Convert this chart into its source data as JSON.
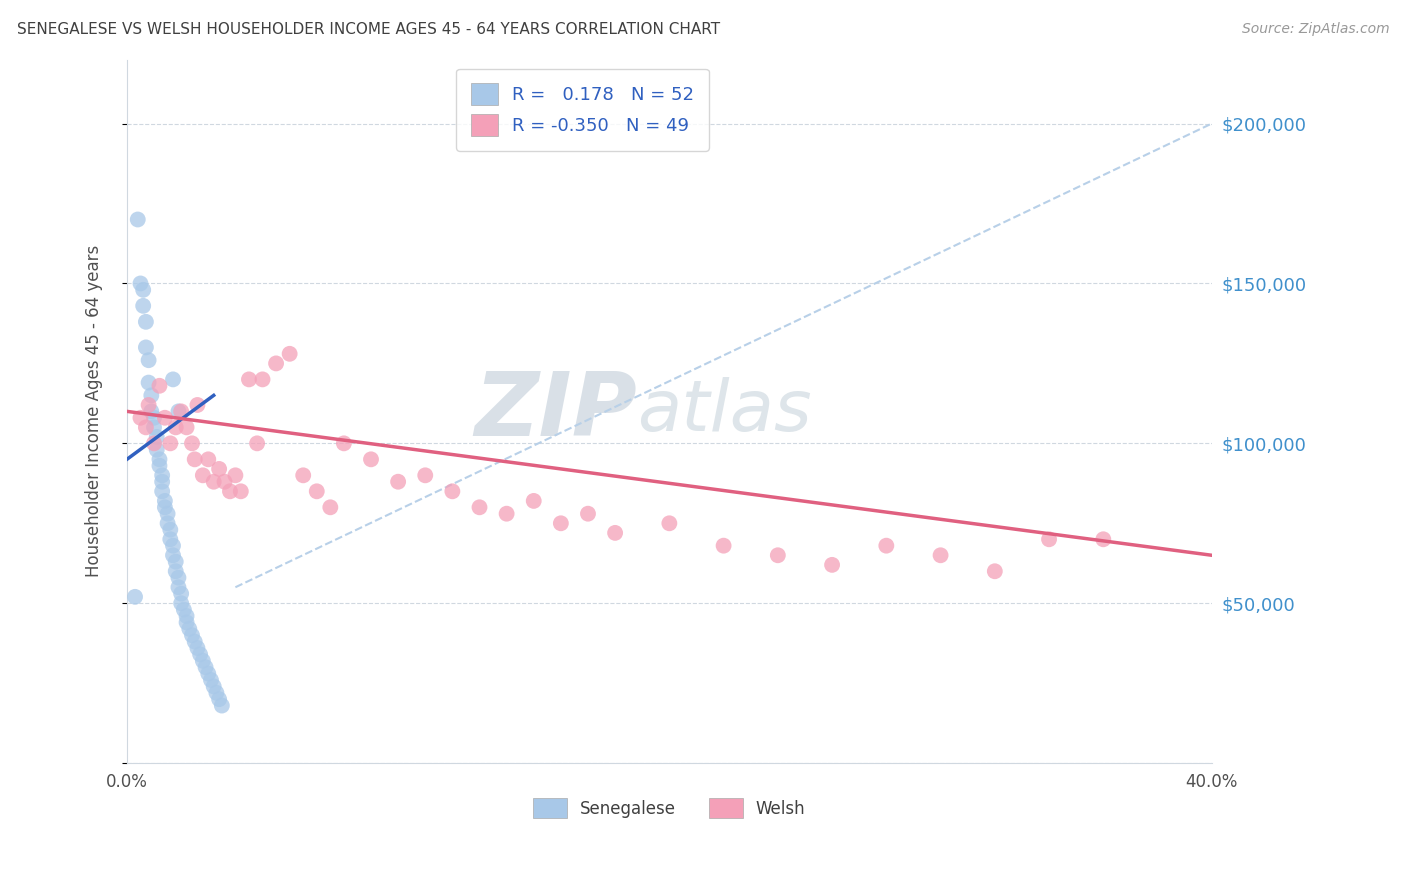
{
  "title": "SENEGALESE VS WELSH HOUSEHOLDER INCOME AGES 45 - 64 YEARS CORRELATION CHART",
  "source": "Source: ZipAtlas.com",
  "ylabel": "Householder Income Ages 45 - 64 years",
  "xlim": [
    0.0,
    0.4
  ],
  "ylim": [
    0,
    220000
  ],
  "yticks": [
    0,
    50000,
    100000,
    150000,
    200000
  ],
  "ytick_labels": [
    "",
    "$50,000",
    "$100,000",
    "$150,000",
    "$200,000"
  ],
  "xticks": [
    0.0,
    0.05,
    0.1,
    0.15,
    0.2,
    0.25,
    0.3,
    0.35,
    0.4
  ],
  "xtick_labels": [
    "0.0%",
    "",
    "",
    "",
    "",
    "",
    "",
    "",
    "40.0%"
  ],
  "senegalese_color": "#a8c8e8",
  "welsh_color": "#f4a0b8",
  "trendline_blue": "#3060c0",
  "trendline_pink": "#e06080",
  "ref_line_color": "#b8d0e8",
  "title_color": "#404040",
  "axis_label_color": "#505050",
  "tick_label_color_right": "#4090cc",
  "watermark_zip_color": "#c8d8e8",
  "watermark_atlas_color": "#c0ccd8",
  "R_senegalese": 0.178,
  "N_senegalese": 52,
  "R_welsh": -0.35,
  "N_welsh": 49,
  "senegalese_x": [
    0.004,
    0.005,
    0.006,
    0.006,
    0.007,
    0.007,
    0.008,
    0.008,
    0.009,
    0.009,
    0.01,
    0.01,
    0.011,
    0.011,
    0.012,
    0.012,
    0.013,
    0.013,
    0.013,
    0.014,
    0.014,
    0.015,
    0.015,
    0.016,
    0.016,
    0.017,
    0.017,
    0.018,
    0.018,
    0.019,
    0.019,
    0.02,
    0.02,
    0.021,
    0.022,
    0.022,
    0.023,
    0.024,
    0.025,
    0.026,
    0.027,
    0.028,
    0.029,
    0.03,
    0.031,
    0.032,
    0.033,
    0.034,
    0.035,
    0.017,
    0.019,
    0.003
  ],
  "senegalese_y": [
    170000,
    150000,
    148000,
    143000,
    138000,
    130000,
    126000,
    119000,
    115000,
    110000,
    108000,
    105000,
    102000,
    98000,
    95000,
    93000,
    90000,
    88000,
    85000,
    82000,
    80000,
    78000,
    75000,
    73000,
    70000,
    68000,
    65000,
    63000,
    60000,
    58000,
    55000,
    53000,
    50000,
    48000,
    46000,
    44000,
    42000,
    40000,
    38000,
    36000,
    34000,
    32000,
    30000,
    28000,
    26000,
    24000,
    22000,
    20000,
    18000,
    120000,
    110000,
    52000
  ],
  "welsh_x": [
    0.005,
    0.007,
    0.008,
    0.01,
    0.012,
    0.014,
    0.016,
    0.018,
    0.02,
    0.022,
    0.024,
    0.025,
    0.026,
    0.028,
    0.03,
    0.032,
    0.034,
    0.036,
    0.038,
    0.04,
    0.042,
    0.045,
    0.048,
    0.05,
    0.055,
    0.06,
    0.065,
    0.07,
    0.075,
    0.08,
    0.09,
    0.1,
    0.11,
    0.12,
    0.13,
    0.14,
    0.15,
    0.16,
    0.17,
    0.18,
    0.2,
    0.22,
    0.24,
    0.26,
    0.28,
    0.3,
    0.32,
    0.34,
    0.36
  ],
  "welsh_y": [
    108000,
    105000,
    112000,
    100000,
    118000,
    108000,
    100000,
    105000,
    110000,
    105000,
    100000,
    95000,
    112000,
    90000,
    95000,
    88000,
    92000,
    88000,
    85000,
    90000,
    85000,
    120000,
    100000,
    120000,
    125000,
    128000,
    90000,
    85000,
    80000,
    100000,
    95000,
    88000,
    90000,
    85000,
    80000,
    78000,
    82000,
    75000,
    78000,
    72000,
    75000,
    68000,
    65000,
    62000,
    68000,
    65000,
    60000,
    70000,
    70000
  ]
}
